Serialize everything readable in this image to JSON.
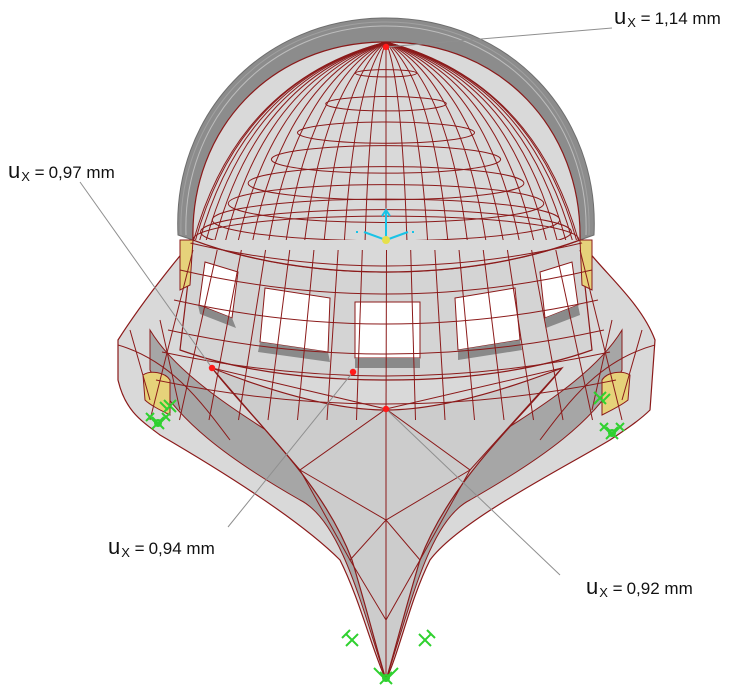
{
  "annotations": {
    "top": {
      "symbol": "u",
      "sub": "X",
      "eq": "=",
      "value": "1,14 mm"
    },
    "left": {
      "symbol": "u",
      "sub": "X",
      "eq": "=",
      "value": "0,97 mm"
    },
    "mid": {
      "symbol": "u",
      "sub": "X",
      "eq": "=",
      "value": "0,94 mm"
    },
    "right": {
      "symbol": "u",
      "sub": "X",
      "eq": "=",
      "value": "0,92 mm"
    }
  },
  "colors": {
    "mesh_line": "#8b1a1a",
    "shell_fill": "#d9d9d9",
    "shell_shade": "#a6a6a6",
    "deformed_outline": "#7f7f7f",
    "support": "#2fd12f",
    "point": "#ff1a1a",
    "axis": "#19c3e6",
    "inner_face": "#e6d27a"
  },
  "icons": {
    "supports": "pinned-support-icon",
    "axes": "local-axis-icon"
  }
}
